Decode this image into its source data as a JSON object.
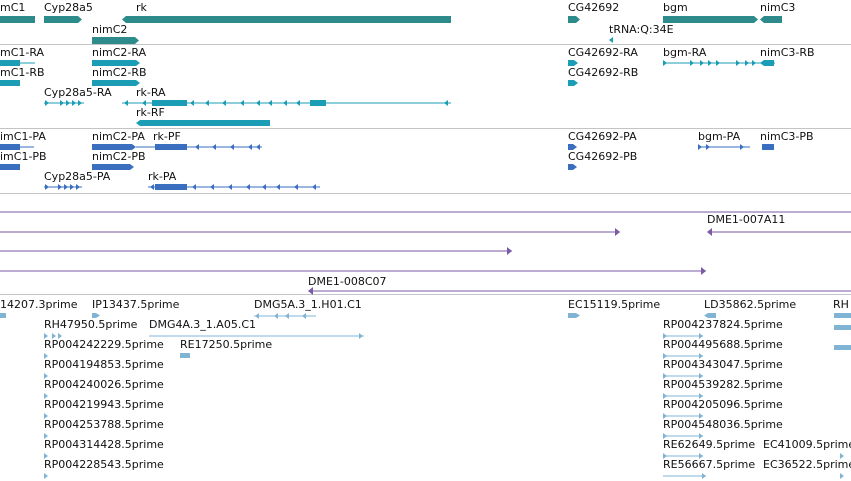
{
  "colors": {
    "gene": "#2e8b8b",
    "mrna": "#1a9db5",
    "cds": "#3a6fbf",
    "clone": "#7b5aa6",
    "est": "#7fb4d4",
    "separator": "#c4c4c4"
  },
  "gene_track": {
    "labels": {
      "nimC1": "mC1",
      "Cyp28a5": "Cyp28a5",
      "rk": "rk",
      "nimC2": "nimC2",
      "CG42692": "CG42692",
      "bgm": "bgm",
      "nimC3": "nimC3",
      "trna": "tRNA:Q:34E"
    }
  },
  "transcript_track": {
    "labels": {
      "nimC1_RA": "mC1-RA",
      "nimC2_RA": "nimC2-RA",
      "CG42692_RA": "CG42692-RA",
      "bgm_RA": "bgm-RA",
      "nimC3_RB": "nimC3-RB",
      "nimC1_RB": "mC1-RB",
      "nimC2_RB": "nimC2-RB",
      "CG42692_RB": "CG42692-RB",
      "Cyp28a5_RA": "Cyp28a5-RA",
      "rk_RA": "rk-RA",
      "rk_RF": "rk-RF"
    }
  },
  "protein_track": {
    "labels": {
      "nimC1_PA": "imC1-PA",
      "nimC2_PA": "nimC2-PA",
      "rk_PF": "rk-PF",
      "CG42692_PA": "CG42692-PA",
      "bgm_PA": "bgm-PA",
      "nimC3_PB": "nimC3-PB",
      "nimC1_PB": "imC1-PB",
      "nimC2_PB": "nimC2-PB",
      "CG42692_PB": "CG42692-PB",
      "Cyp28a5_PA": "Cyp28a5-PA",
      "rk_PA": "rk-PA"
    }
  },
  "clone_track": {
    "labels": {
      "DME1_007A11": "DME1-007A11",
      "DME1_008C07": "DME1-008C07"
    }
  },
  "est_track": {
    "labels": {
      "e14207": "14207.3prime",
      "IP13437": "IP13437.5prime",
      "DMG5A3": "DMG5A.3_1.H01.C1",
      "EC15119": "EC15119.5prime",
      "LD35862": "LD35862.5prime",
      "RH": "RH",
      "RH47950": "RH47950.5prime",
      "DMG4A3": "DMG4A.3_1.A05.C1",
      "RP004237824": "RP004237824.5prime",
      "RP004242229": "RP004242229.5prime",
      "RE17250": "RE17250.5prime",
      "RP004495688": "RP004495688.5prime",
      "RP004194853": "RP004194853.5prime",
      "RP004343047": "RP004343047.5prime",
      "RP004240026": "RP004240026.5prime",
      "RP004539282": "RP004539282.5prime",
      "RP004219943": "RP004219943.5prime",
      "RP004205096": "RP004205096.5prime",
      "RP004253788": "RP004253788.5prime",
      "RP004548036": "RP004548036.5prime",
      "RP004314428": "RP004314428.5prime",
      "RE62649": "RE62649.5prime",
      "EC41009": "EC41009.5prime",
      "RP004228543": "RP004228543.5prime",
      "RE56667": "RE56667.5prime",
      "EC36522": "EC36522.5prime"
    }
  }
}
